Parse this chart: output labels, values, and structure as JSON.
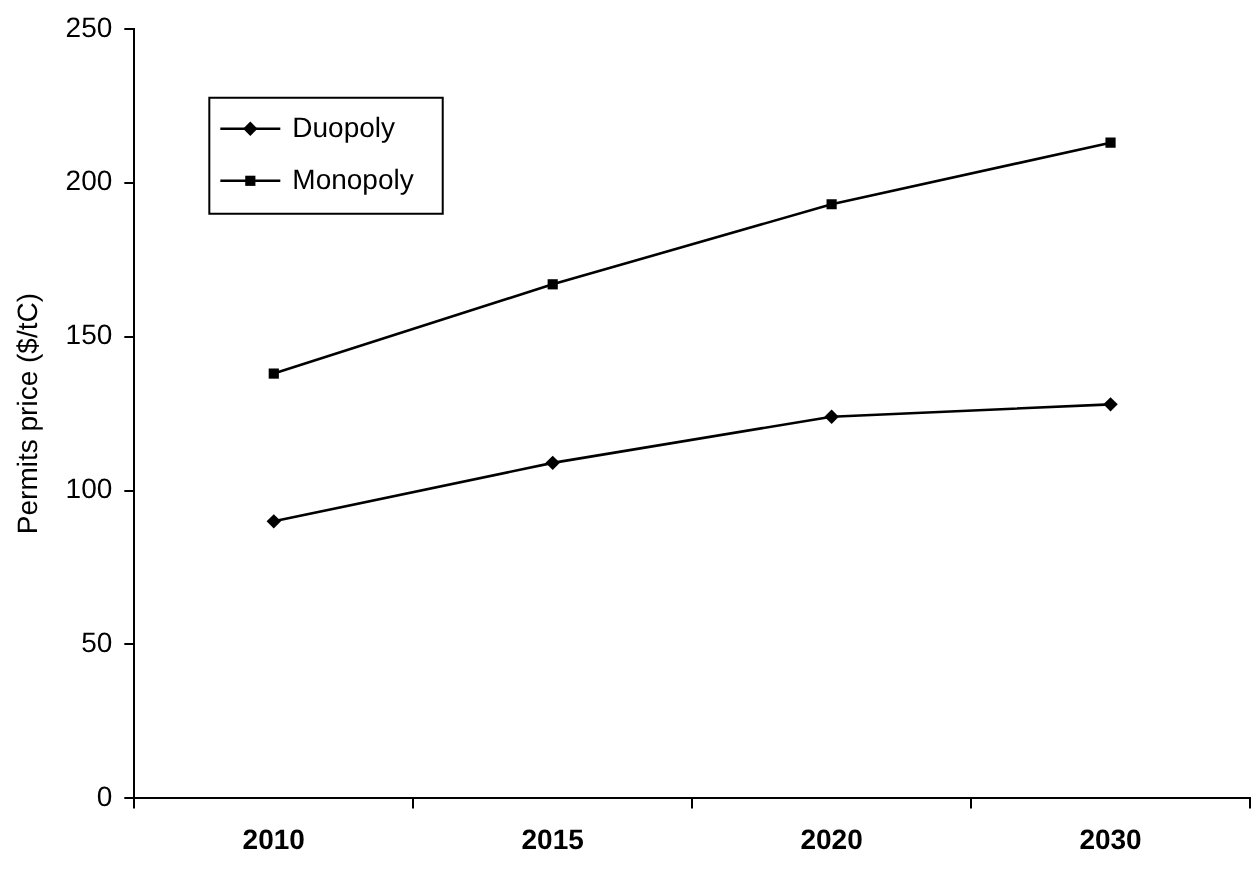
{
  "chart_data": {
    "type": "line",
    "ylabel": "Permits price ($/tC)",
    "categories": [
      "2010",
      "2015",
      "2020",
      "2030"
    ],
    "series": [
      {
        "name": "Duopoly",
        "color": "#000000",
        "marker": "diamond",
        "values": [
          90,
          109,
          124,
          128
        ]
      },
      {
        "name": "Monopoly",
        "color": "#000000",
        "marker": "square",
        "values": [
          138,
          167,
          193,
          213
        ]
      }
    ],
    "ylim": [
      0,
      250
    ],
    "yticks": [
      0,
      50,
      100,
      150,
      200,
      250
    ],
    "grid": false,
    "legend": "top left",
    "line_style": "solid"
  }
}
